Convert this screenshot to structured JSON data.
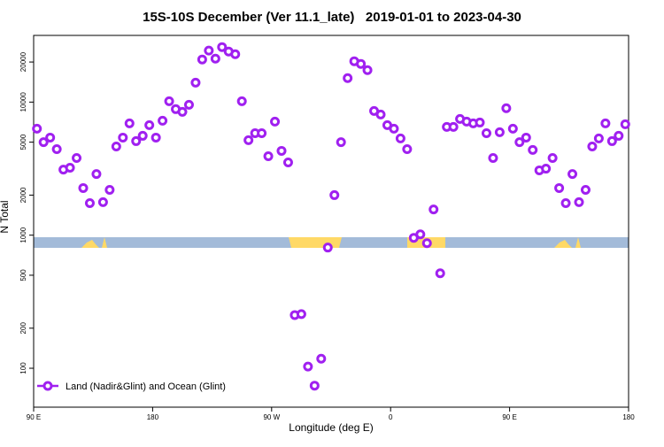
{
  "chart_data": {
    "type": "scatter",
    "title": "15S-10S December (Ver 11.1_late)   2019-01-01 to 2023-04-30",
    "xlabel": "Longitude (deg E)",
    "ylabel": "N Total",
    "log_y": true,
    "legend": "bottom-left",
    "xlim": [
      90,
      540
    ],
    "xticks": [
      {
        "value": 90,
        "label": "90 E"
      },
      {
        "value": 180,
        "label": "180"
      },
      {
        "value": 270,
        "label": "90 W"
      },
      {
        "value": 360,
        "label": "0"
      },
      {
        "value": 450,
        "label": "90 E"
      },
      {
        "value": 540,
        "label": "180"
      }
    ],
    "ylim": [
      51,
      31700
    ],
    "yticks": [
      100,
      200,
      500,
      1000,
      2000,
      5000,
      10000,
      20000
    ],
    "x": [
      92.5,
      97.5,
      102.5,
      107.5,
      112.5,
      117.5,
      122.5,
      127.5,
      132.5,
      137.5,
      142.5,
      147.5,
      152.5,
      157.5,
      162.5,
      167.5,
      172.5,
      177.5,
      182.5,
      187.5,
      192.5,
      197.5,
      202.5,
      207.5,
      212.5,
      217.5,
      222.5,
      227.5,
      232.5,
      237.5,
      242.5,
      247.5,
      252.5,
      257.5,
      262.5,
      267.5,
      272.5,
      277.5,
      282.5,
      287.5,
      292.5,
      297.5,
      302.5,
      307.5,
      312.5,
      317.5,
      322.5,
      327.5,
      332.5,
      337.5,
      342.5,
      347.5,
      352.5,
      357.5,
      362.5,
      367.5,
      372.5,
      377.5,
      382.5,
      387.5,
      392.5,
      397.5,
      402.5,
      407.5,
      412.5,
      417.5,
      422.5,
      427.5,
      432.5,
      437.5,
      442.5,
      447.5,
      452.5,
      457.5,
      462.5,
      467.5,
      472.5,
      477.5,
      482.5,
      487.5,
      492.5,
      497.5,
      502.5,
      507.5,
      512.5,
      517.5,
      522.5,
      527.5,
      532.5,
      537.5
    ],
    "series": [
      {
        "name": "Land (Nadir&Glint) and Ocean (Glint)",
        "color": "#a020f0",
        "values": [
          6310,
          5000,
          5410,
          4430,
          3110,
          3210,
          3800,
          2260,
          1740,
          2880,
          1770,
          2190,
          4640,
          5410,
          6920,
          5090,
          5580,
          6710,
          5410,
          7240,
          10150,
          8850,
          8450,
          9550,
          14000,
          20900,
          24370,
          21200,
          25900,
          23990,
          22900,
          10150,
          5170,
          5840,
          5840,
          3920,
          7130,
          4300,
          3520,
          251,
          255,
          103,
          74,
          118,
          807,
          2000,
          5000,
          15140,
          20270,
          19360,
          17380,
          8580,
          8070,
          6710,
          6310,
          5330,
          4430,
          955,
          1015,
          871,
          1560,
          517,
          6510,
          6510,
          7470,
          7130,
          6920,
          7020,
          5840,
          3800,
          5940,
          8990,
          6310,
          5000,
          5410,
          4370,
          3070,
          3160,
          3800,
          2260,
          1740,
          2880,
          1770,
          2190,
          4640,
          5330,
          6920,
          5090,
          5580,
          6810
        ]
      }
    ]
  }
}
